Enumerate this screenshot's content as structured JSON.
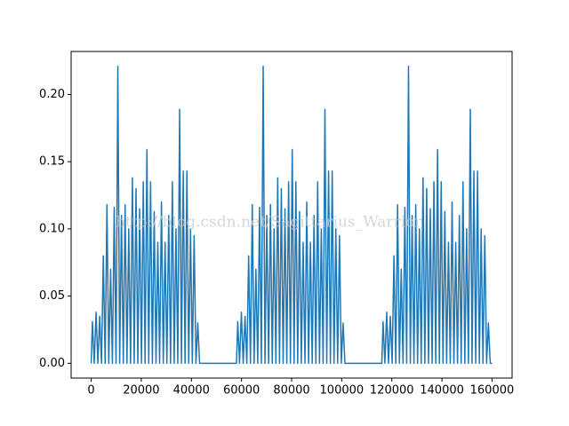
{
  "chart_data": {
    "type": "line",
    "color": "#1f77b4",
    "watermark": "http://blog.csdn.net/Sagittarius_Warrior",
    "x": [
      0,
      500,
      1225,
      1950,
      2675,
      3400,
      4125,
      4850,
      5575,
      6300,
      7025,
      7750,
      8475,
      9200,
      9925,
      10650,
      11375,
      12100,
      12825,
      13550,
      14275,
      15000,
      15725,
      16450,
      17175,
      17900,
      18625,
      19350,
      20075,
      20800,
      21525,
      22250,
      22975,
      23700,
      24425,
      25150,
      25875,
      26600,
      27325,
      28050,
      28775,
      29500,
      30225,
      30950,
      31675,
      32400,
      33125,
      33850,
      34575,
      35300,
      36025,
      36750,
      37475,
      38200,
      38925,
      39650,
      40375,
      41100,
      41825,
      42550,
      43275,
      58000,
      58500,
      59225,
      59950,
      60675,
      61400,
      62125,
      62850,
      63575,
      64300,
      65025,
      65750,
      66475,
      67200,
      67925,
      68650,
      69375,
      70100,
      70825,
      71550,
      72275,
      73000,
      73725,
      74450,
      75175,
      75900,
      76625,
      77350,
      78075,
      78800,
      79525,
      80250,
      80975,
      81700,
      82425,
      83150,
      83875,
      84600,
      85325,
      86050,
      86775,
      87500,
      88225,
      88950,
      89675,
      90400,
      91125,
      91850,
      92575,
      93300,
      94025,
      94750,
      95475,
      96200,
      96925,
      97650,
      98375,
      99100,
      99825,
      100550,
      101275,
      116000,
      116500,
      117225,
      117950,
      118675,
      119400,
      120125,
      120850,
      121575,
      122300,
      123025,
      123750,
      124475,
      125200,
      125925,
      126650,
      127375,
      128100,
      128825,
      129550,
      130275,
      131000,
      131725,
      132450,
      133175,
      133900,
      134625,
      135350,
      136075,
      136800,
      137525,
      138250,
      138975,
      139700,
      140425,
      141150,
      141875,
      142600,
      143325,
      144050,
      144775,
      145500,
      146225,
      146950,
      147675,
      148400,
      149125,
      149850,
      150575,
      151300,
      152025,
      152750,
      153475,
      154200,
      154925,
      155650,
      156375,
      157100,
      157825,
      158550,
      159275,
      160000
    ],
    "values": [
      0,
      0.031,
      0,
      0.038,
      0,
      0.035,
      0,
      0.08,
      0,
      0.118,
      0,
      0.07,
      0,
      0.116,
      0,
      0.221,
      0,
      0.11,
      0,
      0.118,
      0,
      0.1,
      0,
      0.138,
      0,
      0.13,
      0,
      0.115,
      0,
      0.135,
      0,
      0.159,
      0,
      0.135,
      0,
      0.113,
      0,
      0.09,
      0,
      0.12,
      0,
      0.09,
      0,
      0.11,
      0,
      0.135,
      0,
      0.1,
      0,
      0.189,
      0,
      0.143,
      0,
      0.143,
      0,
      0.1,
      0,
      0.095,
      0,
      0.03,
      0,
      0,
      0.031,
      0,
      0.038,
      0,
      0.035,
      0,
      0.08,
      0,
      0.118,
      0,
      0.07,
      0,
      0.116,
      0,
      0.221,
      0,
      0.11,
      0,
      0.118,
      0,
      0.1,
      0,
      0.138,
      0,
      0.13,
      0,
      0.115,
      0,
      0.135,
      0,
      0.159,
      0,
      0.135,
      0,
      0.113,
      0,
      0.09,
      0,
      0.12,
      0,
      0.09,
      0,
      0.11,
      0,
      0.135,
      0,
      0.1,
      0,
      0.189,
      0,
      0.143,
      0,
      0.143,
      0,
      0.1,
      0,
      0.095,
      0,
      0.03,
      0,
      0,
      0.031,
      0,
      0.038,
      0,
      0.035,
      0,
      0.08,
      0,
      0.118,
      0,
      0.07,
      0,
      0.116,
      0,
      0.221,
      0,
      0.11,
      0,
      0.118,
      0,
      0.1,
      0,
      0.138,
      0,
      0.13,
      0,
      0.115,
      0,
      0.135,
      0,
      0.159,
      0,
      0.135,
      0,
      0.113,
      0,
      0.09,
      0,
      0.12,
      0,
      0.09,
      0,
      0.11,
      0,
      0.135,
      0,
      0.1,
      0,
      0.189,
      0,
      0.143,
      0,
      0.143,
      0,
      0.1,
      0,
      0.095,
      0,
      0.03,
      0,
      0
    ],
    "xlim": [
      -8000,
      168000
    ],
    "xticks": [
      0,
      20000,
      40000,
      60000,
      80000,
      100000,
      120000,
      140000,
      160000
    ],
    "ylim": [
      -0.011,
      0.232
    ],
    "yticks": [
      {
        "value": 0,
        "label": "0.00"
      },
      {
        "value": 0.05,
        "label": "0.05"
      },
      {
        "value": 0.1,
        "label": "0.10"
      },
      {
        "value": 0.15,
        "label": "0.15"
      },
      {
        "value": 0.2,
        "label": "0.20"
      }
    ]
  }
}
